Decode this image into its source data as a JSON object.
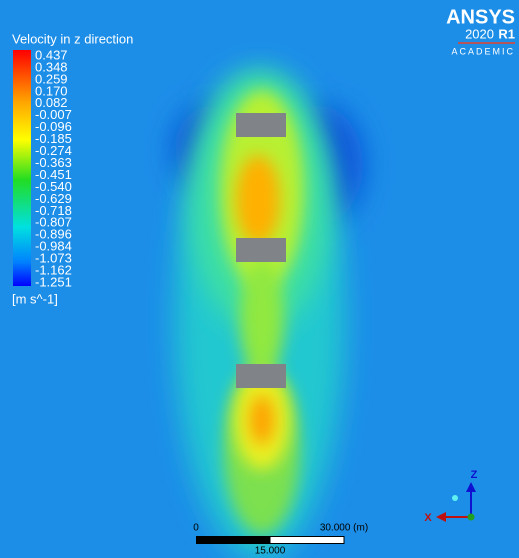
{
  "title": "Velocity in z direction",
  "legend": {
    "labels": [
      "0.437",
      "0.348",
      "0.259",
      "0.170",
      "0.082",
      "-0.007",
      "-0.096",
      "-0.185",
      "-0.274",
      "-0.363",
      "-0.451",
      "-0.540",
      "-0.629",
      "-0.718",
      "-0.807",
      "-0.896",
      "-0.984",
      "-1.073",
      "-1.162",
      "-1.251"
    ],
    "unit": "[m s^-1]"
  },
  "logo": {
    "brand": "ANSYS",
    "year": "2020",
    "release": "R1",
    "edition": "ACADEMIC"
  },
  "scale_bar": {
    "start": "0",
    "end": "30.000 (m)",
    "mid": "15.000"
  },
  "axes": {
    "z": "Z",
    "x": "X"
  }
}
